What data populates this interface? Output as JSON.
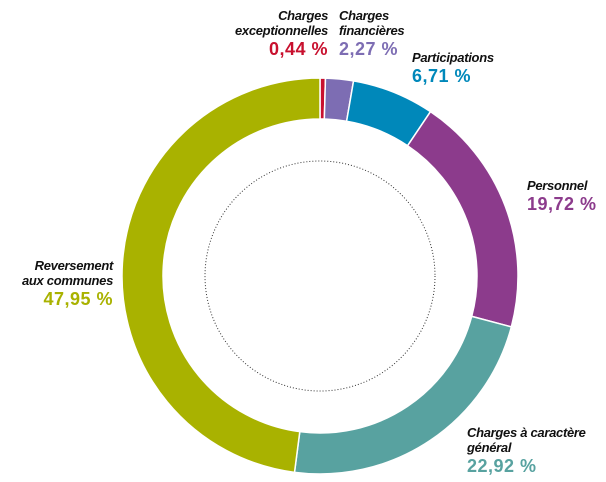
{
  "chart_data": {
    "type": "donut",
    "categories": [
      "Charges exceptionnelles",
      "Charges financières",
      "Participations",
      "Personnel",
      "Charges à caractère général",
      "Reversement aux communes"
    ],
    "values": [
      0.44,
      2.27,
      6.71,
      19.72,
      22.92,
      47.95
    ],
    "value_labels": [
      "0,44 %",
      "2,27 %",
      "6,71 %",
      "19,72 %",
      "22,92 %",
      "47,95 %"
    ],
    "colors": [
      "#c8102e",
      "#7d6db3",
      "#0088ba",
      "#8c3b8c",
      "#58a2a0",
      "#a9b200"
    ]
  }
}
